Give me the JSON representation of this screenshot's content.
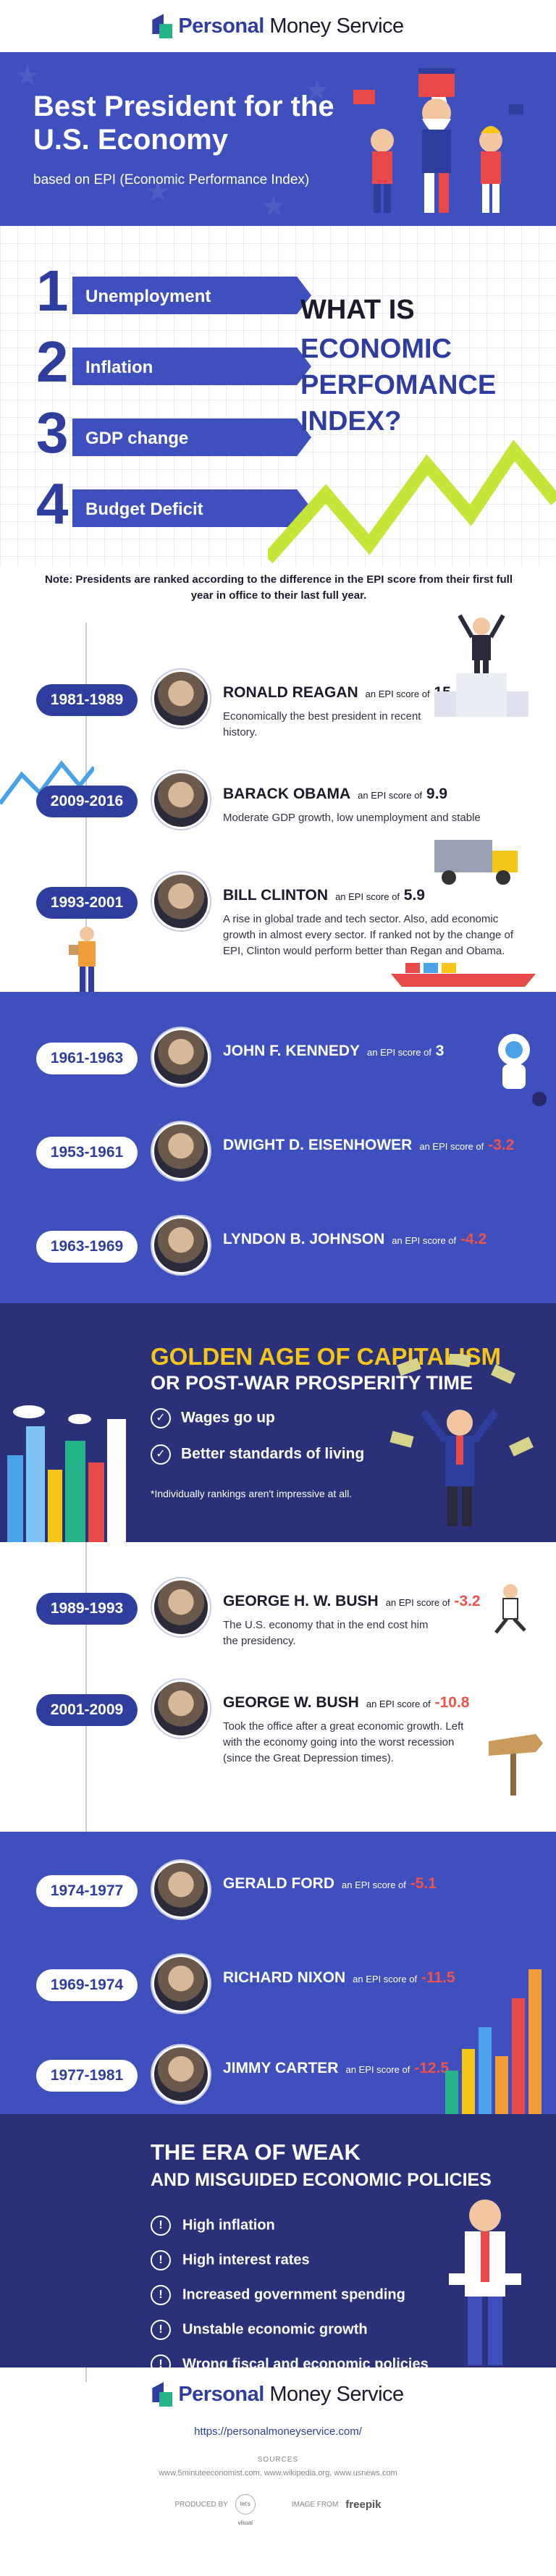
{
  "brand": {
    "name_a": "Personal",
    "name_b": "Money",
    "name_c": "Service",
    "colors": {
      "primary": "#3f4fbd",
      "dark": "#2a3179",
      "accent": "#f5c518",
      "negative": "#f0524a",
      "green": "#27b38a"
    }
  },
  "hero": {
    "title": "Best President for the U.S. Economy",
    "subtitle": "based on EPI (Economic Performance Index)"
  },
  "epi": {
    "items": [
      {
        "num": "1",
        "label": "Unemployment"
      },
      {
        "num": "2",
        "label": "Inflation"
      },
      {
        "num": "3",
        "label": "GDP change"
      },
      {
        "num": "4",
        "label": "Budget Deficit"
      }
    ],
    "question_a": "WHAT IS",
    "question_b": "ECONOMIC PERFOMANCE INDEX?"
  },
  "note": "Note: Presidents are ranked according to the difference in the EPI score from their first full year in office to their last full year.",
  "epi_prefix": "an EPI score of",
  "presidents_group1": [
    {
      "years": "1981-1989",
      "name": "RONALD REAGAN",
      "score": "15.1",
      "desc": "Economically the best president in recent history."
    },
    {
      "years": "2009-2016",
      "name": "BARACK OBAMA",
      "score": "9.9",
      "desc": "Moderate GDP growth, low unemployment and stable"
    },
    {
      "years": "1993-2001",
      "name": "BILL CLINTON",
      "score": "5.9",
      "desc": "A rise in global trade and tech sector. Also, add economic growth in almost every sector. If ranked not by the change of EPI, Clinton would perform better than Regan and Obama."
    }
  ],
  "presidents_group2": [
    {
      "years": "1961-1963",
      "name": "JOHN F. KENNEDY",
      "score": "3"
    },
    {
      "years": "1953-1961",
      "name": "DWIGHT D. EISENHOWER",
      "score": "-3.2"
    },
    {
      "years": "1963-1969",
      "name": "LYNDON B. JOHNSON",
      "score": "-4.2"
    }
  ],
  "golden": {
    "title": "GOLDEN AGE OF CAPITALISM",
    "subtitle": "OR POST-WAR PROSPERITY TIME",
    "points": [
      "Wages go up",
      "Better standards of living"
    ],
    "note": "*Individually rankings aren't impressive at all."
  },
  "presidents_group3": [
    {
      "years": "1989-1993",
      "name": "GEORGE H. W. BUSH",
      "score": "-3.2",
      "desc": "The U.S. economy that in the end cost him the presidency."
    },
    {
      "years": "2001-2009",
      "name": "GEORGE W. BUSH",
      "score": "-10.8",
      "desc": "Took the office after a great economic growth. Left with the economy going into the worst recession (since the Great Depression times)."
    }
  ],
  "presidents_group4": [
    {
      "years": "1974-1977",
      "name": "GERALD FORD",
      "score": "-5.1"
    },
    {
      "years": "1969-1974",
      "name": "RICHARD NIXON",
      "score": "-11.5"
    },
    {
      "years": "1977-1981",
      "name": "JIMMY CARTER",
      "score": "-12.5"
    }
  ],
  "era": {
    "title": "THE ERA OF WEAK",
    "subtitle": "AND MISGUIDED ECONOMIC POLICIES",
    "points": [
      "High inflation",
      "High interest rates",
      "Increased government spending",
      "Unstable economic growth",
      "Wrong fiscal and economic policies"
    ]
  },
  "footer": {
    "url": "https://personalmoneyservice.com/",
    "sources_title": "SOURCES",
    "sources": "www.5minuteeconomist.com, www.wikipedia.org, www.usnews.com",
    "produced_by": "PRODUCED BY",
    "producer": "let's visual",
    "image_from": "IMAGE FROM",
    "image_source": "freepik"
  }
}
